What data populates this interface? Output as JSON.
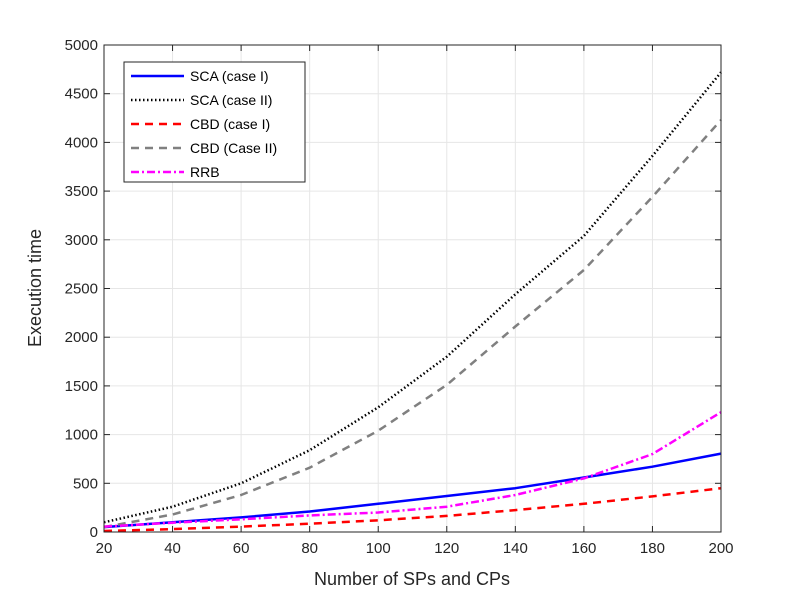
{
  "chart_data": {
    "type": "line",
    "title": "",
    "xlabel": "Number of SPs and CPs",
    "ylabel": "Execution time",
    "xlim": [
      20,
      200
    ],
    "ylim": [
      0,
      5000
    ],
    "xticks": [
      20,
      40,
      60,
      80,
      100,
      120,
      140,
      160,
      180,
      200
    ],
    "yticks": [
      0,
      500,
      1000,
      1500,
      2000,
      2500,
      3000,
      3500,
      4000,
      4500,
      5000
    ],
    "grid": true,
    "legend_position": "top-left",
    "x": [
      20,
      40,
      60,
      80,
      100,
      120,
      140,
      160,
      180,
      200
    ],
    "series": [
      {
        "name": "SCA (case I)",
        "color": "#0000ff",
        "line_style": "solid",
        "values": [
          50,
          100,
          150,
          210,
          290,
          370,
          450,
          560,
          670,
          805
        ]
      },
      {
        "name": "SCA (case II)",
        "color": "#000000",
        "line_style": "dotted",
        "values": [
          100,
          260,
          500,
          840,
          1280,
          1800,
          2440,
          3040,
          3860,
          4720
        ]
      },
      {
        "name": "CBD (case I)",
        "color": "#ff0000",
        "line_style": "dashed",
        "values": [
          10,
          30,
          55,
          85,
          120,
          165,
          225,
          290,
          365,
          450
        ]
      },
      {
        "name": "CBD (Case II)",
        "color": "#808080",
        "line_style": "dashed",
        "values": [
          50,
          180,
          380,
          660,
          1040,
          1510,
          2110,
          2690,
          3440,
          4230
        ]
      },
      {
        "name": "RRB",
        "color": "#ff00ff",
        "line_style": "dashdot",
        "values": [
          55,
          95,
          130,
          170,
          200,
          260,
          380,
          550,
          800,
          1230
        ]
      }
    ]
  }
}
